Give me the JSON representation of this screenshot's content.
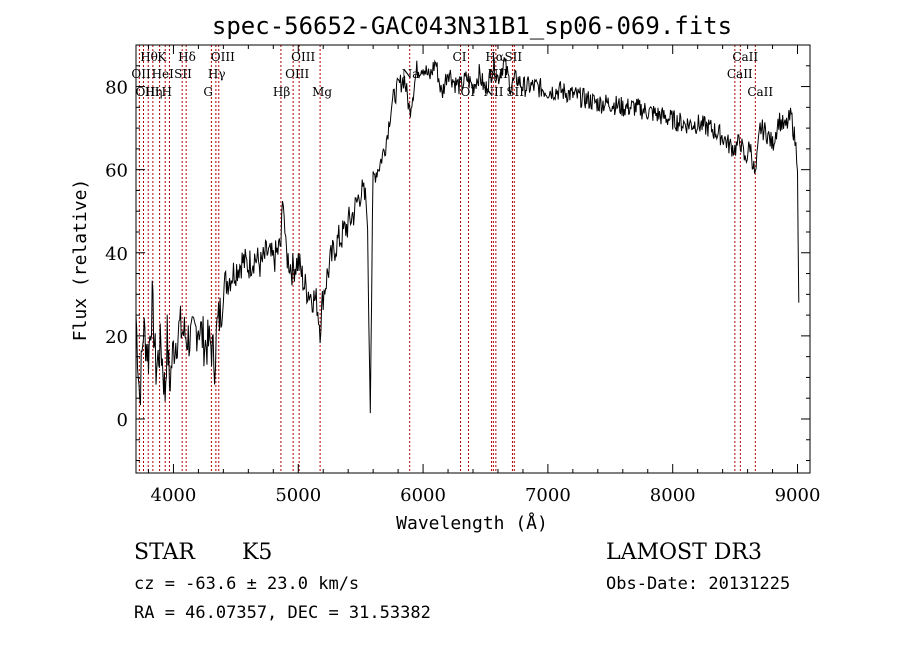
{
  "chart_data": {
    "type": "line",
    "title": "spec-56652-GAC043N31B1_sp06-069.fits",
    "xlabel": "Wavelength (Å)",
    "ylabel": "Flux (relative)",
    "xlim": [
      3700,
      9100
    ],
    "ylim": [
      -13,
      90
    ],
    "x_ticks": [
      4000,
      5000,
      6000,
      7000,
      8000,
      9000
    ],
    "x_tick_labels": [
      "4000",
      "5000",
      "6000",
      "7000",
      "8000",
      "9000"
    ],
    "y_ticks": [
      0,
      20,
      40,
      60,
      80
    ],
    "y_tick_labels": [
      "0",
      "20",
      "40",
      "60",
      "80"
    ],
    "grid": false,
    "series": [
      {
        "name": "flux",
        "x": [
          3700,
          3730,
          3760,
          3800,
          3830,
          3860,
          3900,
          3933,
          3950,
          3968,
          4000,
          4050,
          4100,
          4150,
          4200,
          4250,
          4300,
          4330,
          4350,
          4380,
          4400,
          4450,
          4500,
          4550,
          4600,
          4650,
          4700,
          4750,
          4800,
          4861,
          4880,
          4900,
          4950,
          5000,
          5050,
          5100,
          5150,
          5175,
          5200,
          5250,
          5300,
          5350,
          5400,
          5450,
          5500,
          5550,
          5577,
          5600,
          5650,
          5700,
          5750,
          5800,
          5850,
          5893,
          5950,
          6000,
          6050,
          6100,
          6150,
          6200,
          6250,
          6300,
          6350,
          6400,
          6450,
          6500,
          6563,
          6600,
          6650,
          6700,
          6750,
          6800,
          6900,
          7000,
          7100,
          7200,
          7300,
          7400,
          7500,
          7600,
          7700,
          7800,
          7900,
          8000,
          8100,
          8200,
          8300,
          8400,
          8450,
          8498,
          8542,
          8580,
          8620,
          8662,
          8700,
          8750,
          8800,
          8850,
          8900,
          8950,
          8980,
          9000,
          9010
        ],
        "y": [
          25,
          5,
          22,
          15,
          28,
          12,
          18,
          6,
          20,
          8,
          17,
          22,
          20,
          19,
          23,
          18,
          18,
          14,
          22,
          26,
          32,
          34,
          36,
          38,
          37,
          39,
          37,
          40,
          38,
          42,
          55,
          40,
          36,
          38,
          32,
          30,
          28,
          22,
          30,
          37,
          42,
          44,
          47,
          50,
          55,
          52,
          5,
          58,
          61,
          66,
          76,
          80,
          82,
          74,
          84,
          85,
          82,
          86,
          78,
          84,
          81,
          80,
          82,
          80,
          83,
          79,
          85,
          82,
          86,
          80,
          82,
          80,
          80,
          79,
          79,
          78,
          77,
          76,
          76,
          75,
          75,
          74,
          73,
          72,
          71,
          71,
          70,
          68,
          66,
          65,
          67,
          62,
          66,
          58,
          70,
          69,
          66,
          72,
          70,
          73,
          67,
          62,
          28
        ]
      }
    ],
    "line_labels": [
      {
        "label": "Hθ",
        "x": 3798,
        "row": 0
      },
      {
        "label": "OII",
        "x": 3727,
        "row": 1
      },
      {
        "label": "OIII",
        "x": 3760,
        "row": 2
      },
      {
        "label": "K",
        "x": 3934,
        "row": 0
      },
      {
        "label": "HeI",
        "x": 3889,
        "row": 1
      },
      {
        "label": "Hη",
        "x": 3835,
        "row": 2
      },
      {
        "label": "SII",
        "x": 4070,
        "row": 1
      },
      {
        "label": "H",
        "x": 3968,
        "row": 2
      },
      {
        "label": "Hδ",
        "x": 4102,
        "row": 0
      },
      {
        "label": "OIII",
        "x": 4363,
        "row": 0
      },
      {
        "label": "Hγ",
        "x": 4340,
        "row": 1
      },
      {
        "label": "G",
        "x": 4304,
        "row": 2
      },
      {
        "label": "OIII",
        "x": 5007,
        "row": 0
      },
      {
        "label": "OIII",
        "x": 4959,
        "row": 1
      },
      {
        "label": "Hβ",
        "x": 4861,
        "row": 2
      },
      {
        "label": "Mg",
        "x": 5175,
        "row": 2
      },
      {
        "label": "Na",
        "x": 5893,
        "row": 1
      },
      {
        "label": "CI",
        "x": 6300,
        "row": 0
      },
      {
        "label": "OI",
        "x": 6364,
        "row": 2
      },
      {
        "label": "Hα",
        "x": 6563,
        "row": 0
      },
      {
        "label": "NII",
        "x": 6583,
        "row": 1
      },
      {
        "label": "NII",
        "x": 6548,
        "row": 2
      },
      {
        "label": "SII",
        "x": 6716,
        "row": 0
      },
      {
        "label": "SII",
        "x": 6731,
        "row": 2
      },
      {
        "label": "CaII",
        "x": 8542,
        "row": 0
      },
      {
        "label": "CaII",
        "x": 8498,
        "row": 1
      },
      {
        "label": "CaII",
        "x": 8662,
        "row": 2
      }
    ]
  },
  "info": {
    "class": "STAR",
    "subclass": "K5",
    "survey": "LAMOST DR3",
    "redshift": "cz = -63.6 ± 23.0 km/s",
    "obs_date": "Obs-Date: 20131225",
    "coords": "RA =  46.07357, DEC =  31.53382"
  },
  "colors": {
    "spectrum": "#000000",
    "line_markers": "#b30000",
    "axes": "#000000"
  }
}
